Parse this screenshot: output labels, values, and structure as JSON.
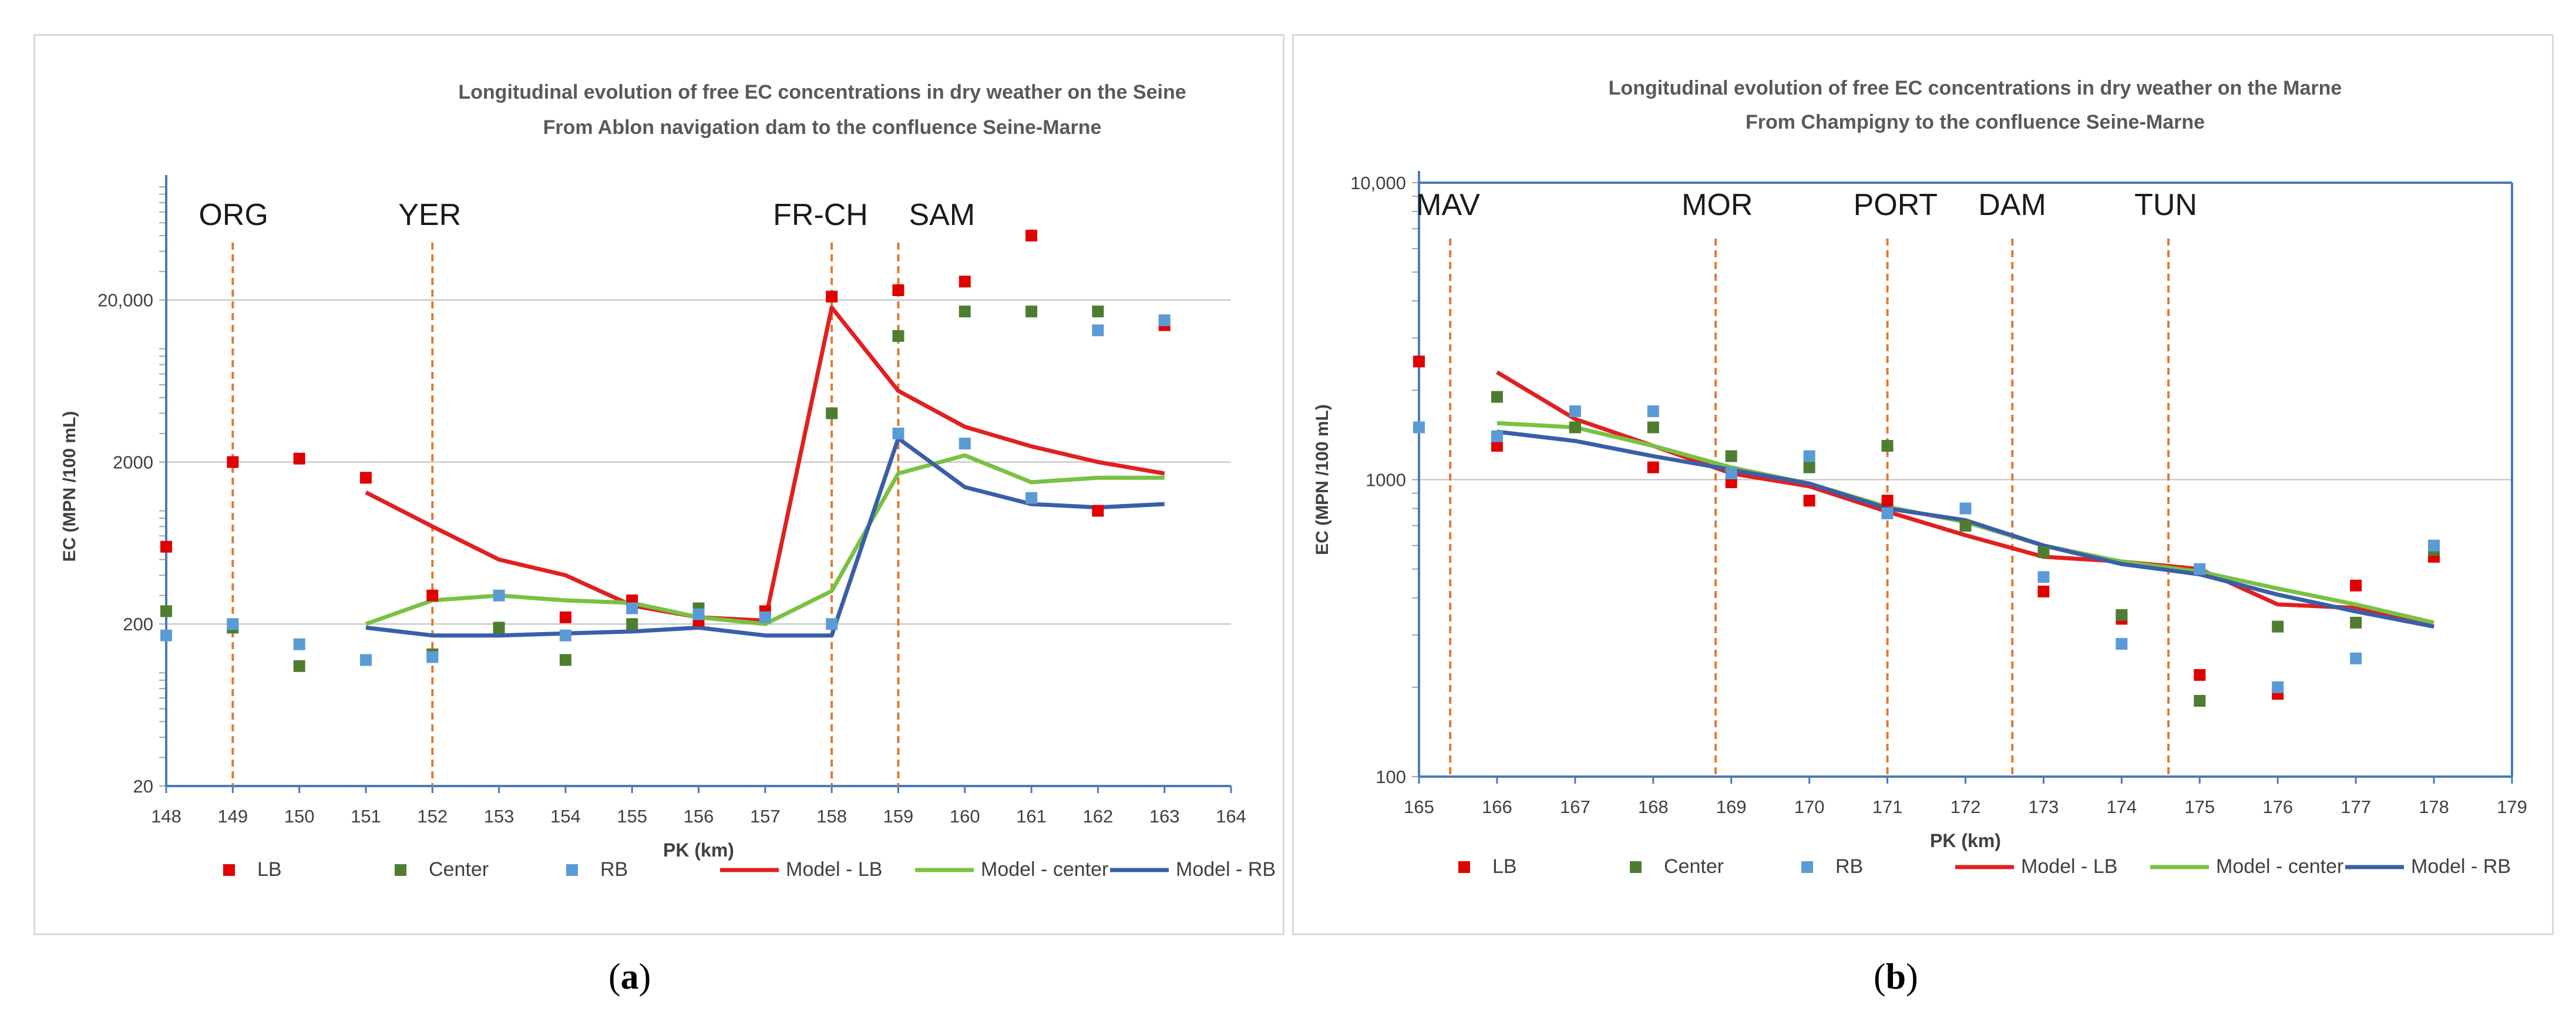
{
  "captions": {
    "a": {
      "open": "(",
      "letter": "a",
      "close": ")"
    },
    "b": {
      "open": "(",
      "letter": "b",
      "close": ")"
    }
  },
  "legend_labels": [
    "LB",
    "Center",
    "RB",
    "Model - LB",
    "Model - center",
    "Model - RB"
  ],
  "colors": {
    "LB": "#e00000",
    "Center": "#4e7d30",
    "RB": "#5b9bd5",
    "Model - LB": "#e02020",
    "Model - center": "#7ac143",
    "Model - RB": "#3a5ea8",
    "vline": "#e07a30",
    "axis": "#4a7ab8",
    "grid": "#bfbfbf"
  },
  "chart_data": [
    {
      "type": "scatter+line",
      "title": "Longitudinal evolution of free EC concentrations in dry weather on the Seine",
      "subtitle": "From Ablon navigation dam to the confluence Seine-Marne",
      "xlabel": "PK (km)",
      "ylabel": "EC (MPN /100 mL)",
      "yscale": "log",
      "xlim": [
        148,
        164
      ],
      "ylim": [
        20,
        100000
      ],
      "x_ticks": [
        148,
        149,
        150,
        151,
        152,
        153,
        154,
        155,
        156,
        157,
        158,
        159,
        160,
        161,
        162,
        163,
        164
      ],
      "y_ticks": [
        20,
        200,
        2000,
        20000
      ],
      "y_tick_labels": [
        "20",
        "200",
        "2000",
        "20,000"
      ],
      "grid": "horizontal",
      "legend_position": "bottom",
      "vertical_markers": [
        {
          "label": "ORG",
          "x": 149
        },
        {
          "label": "YER",
          "x": 152
        },
        {
          "label": "FR-CH",
          "x": 158
        },
        {
          "label": "SAM",
          "x": 159
        }
      ],
      "series": [
        {
          "name": "LB",
          "kind": "points",
          "x": [
            148,
            149,
            150,
            151,
            152,
            154,
            155,
            156,
            157,
            158,
            159,
            160,
            161,
            162,
            163
          ],
          "values": [
            600,
            2000,
            2100,
            1600,
            300,
            220,
            280,
            210,
            240,
            21000,
            23000,
            26000,
            50000,
            1000,
            14000
          ]
        },
        {
          "name": "Center",
          "kind": "points",
          "x": [
            148,
            149,
            150,
            152,
            153,
            154,
            155,
            156,
            158,
            159,
            160,
            161,
            162
          ],
          "values": [
            240,
            190,
            110,
            130,
            190,
            120,
            200,
            250,
            4000,
            12000,
            17000,
            17000,
            17000
          ]
        },
        {
          "name": "RB",
          "kind": "points",
          "x": [
            148,
            149,
            150,
            151,
            152,
            153,
            154,
            155,
            156,
            157,
            158,
            159,
            160,
            161,
            162,
            163
          ],
          "values": [
            170,
            200,
            150,
            120,
            125,
            300,
            170,
            250,
            230,
            220,
            200,
            3000,
            2600,
            1200,
            13000,
            15000
          ]
        },
        {
          "name": "Model - LB",
          "kind": "line",
          "x": [
            151,
            152,
            153,
            154,
            155,
            156,
            157,
            158,
            159,
            160,
            161,
            162,
            163
          ],
          "values": [
            1300,
            800,
            500,
            400,
            260,
            220,
            210,
            18000,
            5500,
            3300,
            2500,
            2000,
            1700
          ]
        },
        {
          "name": "Model - center",
          "kind": "line",
          "x": [
            151,
            152,
            153,
            154,
            155,
            156,
            157,
            158,
            159,
            160,
            161,
            162,
            163
          ],
          "values": [
            200,
            280,
            300,
            280,
            270,
            220,
            200,
            320,
            1700,
            2200,
            1500,
            1600,
            1600
          ]
        },
        {
          "name": "Model - RB",
          "kind": "line",
          "x": [
            151,
            152,
            153,
            154,
            155,
            156,
            157,
            158,
            159,
            160,
            161,
            162,
            163
          ],
          "values": [
            190,
            170,
            170,
            175,
            180,
            190,
            170,
            170,
            2800,
            1400,
            1100,
            1050,
            1100
          ]
        }
      ]
    },
    {
      "type": "scatter+line",
      "title": "Longitudinal evolution of free EC concentrations in dry weather on the Marne",
      "subtitle": "From Champigny to the confluence Seine-Marne",
      "xlabel": "PK (km)",
      "ylabel": "EC (MPN /100 mL)",
      "yscale": "log",
      "xlim": [
        165,
        179
      ],
      "ylim": [
        100,
        10000
      ],
      "x_ticks": [
        165,
        166,
        167,
        168,
        169,
        170,
        171,
        172,
        173,
        174,
        175,
        176,
        177,
        178,
        179
      ],
      "y_ticks": [
        100,
        1000,
        10000
      ],
      "y_tick_labels": [
        "100",
        "1000",
        "10,000"
      ],
      "grid": "horizontal",
      "legend_position": "bottom",
      "vertical_markers": [
        {
          "label": "MAV",
          "x": 165.4
        },
        {
          "label": "MOR",
          "x": 168.8
        },
        {
          "label": "PORT",
          "x": 171
        },
        {
          "label": "DAM",
          "x": 172.6
        },
        {
          "label": "TUN",
          "x": 174.6
        }
      ],
      "series": [
        {
          "name": "LB",
          "kind": "points",
          "x": [
            165,
            166,
            167,
            168,
            169,
            170,
            171,
            172,
            173,
            174,
            175,
            176,
            177,
            178
          ],
          "values": [
            2500,
            1300,
            1500,
            1100,
            980,
            850,
            850,
            700,
            420,
            340,
            220,
            190,
            440,
            550
          ]
        },
        {
          "name": "Center",
          "kind": "points",
          "x": [
            166,
            167,
            168,
            169,
            170,
            171,
            172,
            173,
            174,
            175,
            176,
            177,
            178
          ],
          "values": [
            1900,
            1500,
            1500,
            1200,
            1100,
            1300,
            700,
            570,
            350,
            180,
            320,
            330,
            580
          ]
        },
        {
          "name": "RB",
          "kind": "points",
          "x": [
            165,
            166,
            167,
            168,
            169,
            170,
            171,
            172,
            173,
            174,
            175,
            176,
            177,
            178
          ],
          "values": [
            1500,
            1400,
            1700,
            1700,
            1050,
            1200,
            770,
            800,
            470,
            280,
            500,
            200,
            250,
            600
          ]
        },
        {
          "name": "Model - LB",
          "kind": "line",
          "x": [
            166,
            167,
            168,
            169,
            170,
            171,
            172,
            173,
            174,
            175,
            176,
            177,
            178
          ],
          "values": [
            2300,
            1600,
            1300,
            1050,
            950,
            780,
            650,
            550,
            530,
            500,
            380,
            370,
            320
          ]
        },
        {
          "name": "Model - center",
          "kind": "line",
          "x": [
            166,
            167,
            168,
            169,
            170,
            171,
            172,
            173,
            174,
            175,
            176,
            177,
            178
          ],
          "values": [
            1550,
            1500,
            1300,
            1100,
            970,
            810,
            720,
            600,
            530,
            490,
            430,
            380,
            330
          ]
        },
        {
          "name": "Model - RB",
          "kind": "line",
          "x": [
            166,
            167,
            168,
            169,
            170,
            171,
            172,
            173,
            174,
            175,
            176,
            177,
            178
          ],
          "values": [
            1450,
            1350,
            1200,
            1080,
            970,
            800,
            730,
            600,
            520,
            480,
            410,
            360,
            320
          ]
        }
      ]
    }
  ]
}
